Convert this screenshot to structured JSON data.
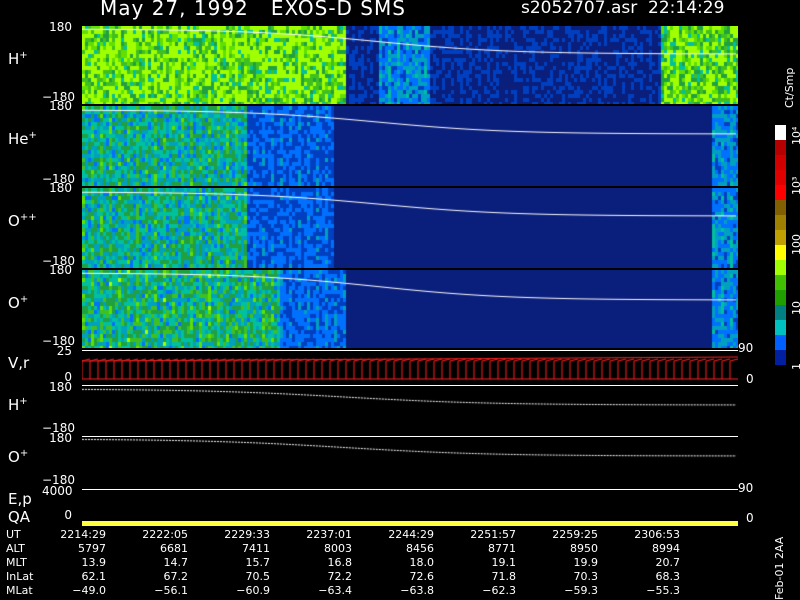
{
  "header": {
    "title": "May 27, 1992   EXOS-D SMS",
    "file": "s2052707.asr  22:14:29"
  },
  "panels": [
    {
      "label": "H",
      "sup": "+",
      "ytop": "180",
      "ybot": "−180"
    },
    {
      "label": "He",
      "sup": "+",
      "ytop": "180",
      "ybot": "−180"
    },
    {
      "label": "O",
      "sup": "++",
      "ytop": "180",
      "ybot": "−180"
    },
    {
      "label": "O",
      "sup": "+",
      "ytop": "180",
      "ybot": "−180"
    }
  ],
  "lower": {
    "vr": {
      "label": "V,r",
      "ytop": "25",
      "ybot": "0",
      "rtop": "90",
      "rbot": "0"
    },
    "h": {
      "label": "H",
      "sup": "+",
      "ytop": "180",
      "ybot": "−180"
    },
    "o": {
      "label": "O",
      "sup": "+",
      "ytop": "180",
      "ybot": "−180"
    },
    "ep": {
      "label": "E,p",
      "ytop": "4000",
      "rtop": "90"
    },
    "qa": {
      "label": "QA",
      "ybot": "0",
      "rbot": "0"
    }
  },
  "colorbar": {
    "unit": "Ct/Smp",
    "ticks": [
      "10⁴",
      "10³",
      "100",
      "10",
      "1"
    ],
    "colors": [
      "#ffffff",
      "#b40000",
      "#d00000",
      "#e00000",
      "#ff0000",
      "#806000",
      "#a08000",
      "#c0a000",
      "#ffff00",
      "#a0ff00",
      "#40c000",
      "#20a000",
      "#008080",
      "#00c0c0",
      "#0060ff",
      "#0020a0"
    ]
  },
  "chart_data": {
    "type": "heatmap",
    "title": "May 27, 1992   EXOS-D SMS",
    "x_ticks": [
      "2214:29",
      "2222:05",
      "2229:33",
      "2237:01",
      "2244:29",
      "2251:57",
      "2259:25",
      "2306:53"
    ],
    "ephemeris": [
      {
        "name": "UT",
        "values": [
          "2214:29",
          "2222:05",
          "2229:33",
          "2237:01",
          "2244:29",
          "2251:57",
          "2259:25",
          "2306:53"
        ]
      },
      {
        "name": "ALT",
        "values": [
          "5797",
          "6681",
          "7411",
          "8003",
          "8456",
          "8771",
          "8950",
          "8994"
        ]
      },
      {
        "name": "MLT",
        "values": [
          "13.9",
          "14.7",
          "15.7",
          "16.8",
          "18.0",
          "19.1",
          "19.9",
          "20.7"
        ]
      },
      {
        "name": "InLat",
        "values": [
          "62.1",
          "67.2",
          "70.5",
          "72.2",
          "72.6",
          "71.8",
          "70.3",
          "68.3"
        ]
      },
      {
        "name": "MLat",
        "values": [
          "−49.0",
          "−56.1",
          "−60.9",
          "−63.4",
          "−63.8",
          "−62.3",
          "−59.3",
          "−55.3"
        ]
      }
    ]
  },
  "footer": {
    "side": "Feb-01 2AA"
  }
}
